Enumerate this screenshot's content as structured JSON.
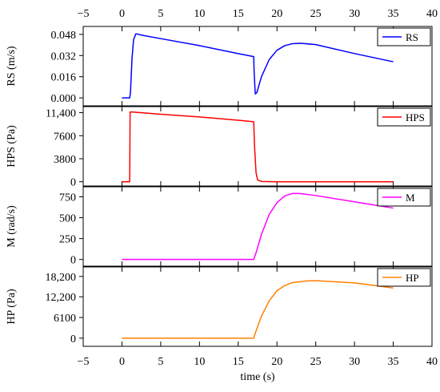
{
  "chart_data": {
    "type": "line",
    "layout": "stacked-panels-shared-x",
    "xlabel": "time (s)",
    "xlim": [
      -5,
      40
    ],
    "xticks": [
      -5,
      0,
      5,
      10,
      15,
      20,
      25,
      30,
      35,
      40
    ],
    "xtick_labels": [
      "−5",
      "0",
      "5",
      "10",
      "15",
      "20",
      "25",
      "30",
      "35",
      "40"
    ],
    "grid": false,
    "legend_position": "top-right",
    "panels": [
      {
        "id": "rs",
        "ylabel": "RS (m/s)",
        "ylim": [
          -0.006,
          0.054
        ],
        "yticks": [
          0,
          0.016,
          0.032,
          0.048
        ],
        "ytick_labels": [
          "0.000",
          "0.016",
          "0.032",
          "0.048"
        ],
        "series": [
          {
            "name": "RS",
            "color": "#0000ff",
            "points": [
              [
                0,
                0
              ],
              [
                1,
                0
              ],
              [
                1.1,
                0.004
              ],
              [
                1.3,
                0.03
              ],
              [
                1.5,
                0.044
              ],
              [
                1.8,
                0.0485
              ],
              [
                2.5,
                0.0475
              ],
              [
                5,
                0.0448
              ],
              [
                10,
                0.0395
              ],
              [
                15,
                0.0335
              ],
              [
                17,
                0.0312
              ],
              [
                17.05,
                0.02
              ],
              [
                17.2,
                0.003
              ],
              [
                17.4,
                0.004
              ],
              [
                18,
                0.016
              ],
              [
                19,
                0.029
              ],
              [
                20,
                0.036
              ],
              [
                21,
                0.0395
              ],
              [
                22,
                0.041
              ],
              [
                23,
                0.0413
              ],
              [
                25,
                0.0403
              ],
              [
                30,
                0.0335
              ],
              [
                35,
                0.0273
              ]
            ]
          }
        ]
      },
      {
        "id": "hps",
        "ylabel": "HPS (Pa)",
        "ylim": [
          -700,
          12400
        ],
        "yticks": [
          0,
          3800,
          7600,
          11400
        ],
        "ytick_labels": [
          "0",
          "3800",
          "7600",
          "11,400"
        ],
        "series": [
          {
            "name": "HPS",
            "color": "#ff0000",
            "points": [
              [
                0,
                0
              ],
              [
                1,
                0
              ],
              [
                1.05,
                11500
              ],
              [
                1.4,
                11500
              ],
              [
                5,
                11150
              ],
              [
                10,
                10700
              ],
              [
                15,
                10150
              ],
              [
                17,
                9900
              ],
              [
                17.1,
                6000
              ],
              [
                17.3,
                1500
              ],
              [
                17.5,
                300
              ],
              [
                18,
                50
              ],
              [
                20,
                0
              ],
              [
                35,
                0
              ]
            ]
          }
        ]
      },
      {
        "id": "m",
        "ylabel": "M (rad/s)",
        "ylim": [
          -80,
          870
        ],
        "yticks": [
          0,
          250,
          500,
          750
        ],
        "ytick_labels": [
          "0",
          "250",
          "500",
          "750"
        ],
        "series": [
          {
            "name": "M",
            "color": "#ff00ff",
            "points": [
              [
                0,
                0
              ],
              [
                17,
                0
              ],
              [
                17.3,
                80
              ],
              [
                18,
                300
              ],
              [
                19,
                540
              ],
              [
                20,
                680
              ],
              [
                21,
                760
              ],
              [
                22,
                790
              ],
              [
                23,
                790
              ],
              [
                25,
                765
              ],
              [
                30,
                690
              ],
              [
                35,
                615
              ]
            ]
          }
        ]
      },
      {
        "id": "hp",
        "ylabel": "HP (Pa)",
        "ylim": [
          -2400,
          21000
        ],
        "yticks": [
          0,
          6100,
          12200,
          18200
        ],
        "ytick_labels": [
          "0",
          "6100",
          "12,200",
          "18,200"
        ],
        "series": [
          {
            "name": "HP",
            "color": "#ff8000",
            "points": [
              [
                0,
                0
              ],
              [
                17,
                0
              ],
              [
                17.2,
                1500
              ],
              [
                18,
                6500
              ],
              [
                19,
                11000
              ],
              [
                20,
                14000
              ],
              [
                21,
                15500
              ],
              [
                22,
                16400
              ],
              [
                24,
                16900
              ],
              [
                25,
                16950
              ],
              [
                30,
                16300
              ],
              [
                35,
                14800
              ]
            ]
          }
        ]
      }
    ]
  }
}
